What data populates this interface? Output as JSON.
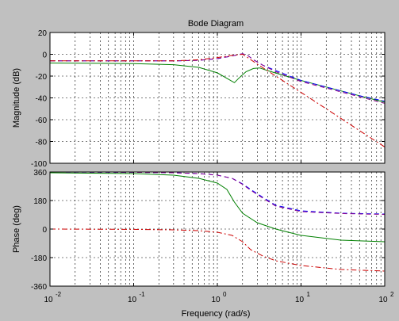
{
  "chart_data": {
    "type": "line",
    "title": "Bode Diagram",
    "xlabel": "Frequency  (rad/s)",
    "xscale": "log",
    "xlim": [
      0.01,
      100
    ],
    "x_ticks": [
      {
        "v": 0.01,
        "base": "10",
        "exp": "-2"
      },
      {
        "v": 0.1,
        "base": "10",
        "exp": "-1"
      },
      {
        "v": 1,
        "base": "10",
        "exp": "0"
      },
      {
        "v": 10,
        "base": "10",
        "exp": "1"
      },
      {
        "v": 100,
        "base": "10",
        "exp": "2"
      }
    ],
    "grid": true,
    "background": "#ffffff",
    "figure_background": "#c0c0c0",
    "panels": [
      {
        "ylabel": "Magnitude (dB)",
        "ylim": [
          -100,
          20
        ],
        "yticks": [
          20,
          0,
          -20,
          -40,
          -60,
          -80,
          -100
        ],
        "series": [
          {
            "color": "#008000",
            "dash": "solid",
            "points": [
              [
                0.01,
                -8
              ],
              [
                0.1,
                -8.5
              ],
              [
                0.3,
                -9.5
              ],
              [
                0.6,
                -12
              ],
              [
                1,
                -17
              ],
              [
                1.3,
                -22
              ],
              [
                1.6,
                -26
              ],
              [
                1.8,
                -22
              ],
              [
                2.2,
                -16
              ],
              [
                2.7,
                -13
              ],
              [
                3.2,
                -12.5
              ],
              [
                4,
                -15
              ],
              [
                6,
                -19
              ],
              [
                10,
                -24
              ],
              [
                20,
                -30
              ],
              [
                50,
                -38
              ],
              [
                100,
                -44
              ]
            ]
          },
          {
            "color": "#0000ff",
            "dash": "dashed",
            "points": [
              [
                0.01,
                -6
              ],
              [
                0.1,
                -6
              ],
              [
                0.3,
                -6
              ],
              [
                0.6,
                -5.5
              ],
              [
                1,
                -4
              ],
              [
                1.5,
                -1.5
              ],
              [
                2,
                0.5
              ],
              [
                2.3,
                -1
              ],
              [
                2.7,
                -5
              ],
              [
                3.5,
                -10
              ],
              [
                5,
                -15
              ],
              [
                10,
                -24
              ],
              [
                20,
                -30
              ],
              [
                50,
                -38
              ],
              [
                100,
                -43
              ]
            ]
          },
          {
            "color": "#8b008b",
            "dash": "dashed",
            "points": [
              [
                0.01,
                -6
              ],
              [
                0.1,
                -6
              ],
              [
                0.3,
                -6
              ],
              [
                0.6,
                -5.5
              ],
              [
                1,
                -4
              ],
              [
                1.5,
                -1.5
              ],
              [
                2,
                0.5
              ],
              [
                2.3,
                -1
              ],
              [
                2.7,
                -5
              ],
              [
                3.5,
                -10
              ],
              [
                5,
                -16
              ],
              [
                10,
                -25
              ],
              [
                20,
                -31
              ],
              [
                50,
                -39
              ],
              [
                100,
                -45
              ]
            ]
          },
          {
            "color": "#cc0000",
            "dash": "dashdot",
            "points": [
              [
                0.01,
                -6
              ],
              [
                0.1,
                -6
              ],
              [
                0.3,
                -6
              ],
              [
                0.6,
                -5
              ],
              [
                1,
                -3
              ],
              [
                1.5,
                -1
              ],
              [
                2,
                0
              ],
              [
                2.3,
                -3
              ],
              [
                3,
                -9
              ],
              [
                5,
                -20
              ],
              [
                10,
                -35
              ],
              [
                20,
                -50
              ],
              [
                50,
                -70
              ],
              [
                100,
                -85
              ]
            ]
          }
        ]
      },
      {
        "ylabel": "Phase (deg)",
        "ylim": [
          -360,
          360
        ],
        "yticks": [
          360,
          180,
          0,
          -180,
          -360
        ],
        "series": [
          {
            "color": "#008000",
            "dash": "solid",
            "points": [
              [
                0.01,
                355
              ],
              [
                0.1,
                350
              ],
              [
                0.3,
                340
              ],
              [
                0.6,
                320
              ],
              [
                1,
                290
              ],
              [
                1.3,
                250
              ],
              [
                1.6,
                170
              ],
              [
                2,
                100
              ],
              [
                3,
                40
              ],
              [
                5,
                0
              ],
              [
                10,
                -40
              ],
              [
                30,
                -70
              ],
              [
                100,
                -80
              ]
            ]
          },
          {
            "color": "#0000ff",
            "dash": "dashed",
            "points": [
              [
                0.01,
                360
              ],
              [
                0.1,
                358
              ],
              [
                0.3,
                355
              ],
              [
                0.6,
                350
              ],
              [
                1,
                340
              ],
              [
                1.5,
                320
              ],
              [
                2,
                285
              ],
              [
                2.5,
                250
              ],
              [
                3.5,
                200
              ],
              [
                5,
                150
              ],
              [
                10,
                115
              ],
              [
                30,
                100
              ],
              [
                100,
                95
              ]
            ]
          },
          {
            "color": "#8b008b",
            "dash": "dashed",
            "points": [
              [
                0.01,
                360
              ],
              [
                0.1,
                358
              ],
              [
                0.3,
                355
              ],
              [
                0.6,
                350
              ],
              [
                1,
                340
              ],
              [
                1.5,
                320
              ],
              [
                2,
                282
              ],
              [
                2.5,
                245
              ],
              [
                3.5,
                195
              ],
              [
                5,
                145
              ],
              [
                10,
                110
              ],
              [
                30,
                98
              ],
              [
                100,
                92
              ]
            ]
          },
          {
            "color": "#cc0000",
            "dash": "dashdot",
            "points": [
              [
                0.01,
                0
              ],
              [
                0.1,
                -2
              ],
              [
                0.3,
                -5
              ],
              [
                0.6,
                -10
              ],
              [
                1,
                -20
              ],
              [
                1.5,
                -40
              ],
              [
                2,
                -80
              ],
              [
                2.5,
                -130
              ],
              [
                3.5,
                -170
              ],
              [
                5,
                -200
              ],
              [
                10,
                -230
              ],
              [
                30,
                -255
              ],
              [
                100,
                -265
              ]
            ]
          }
        ]
      }
    ]
  }
}
